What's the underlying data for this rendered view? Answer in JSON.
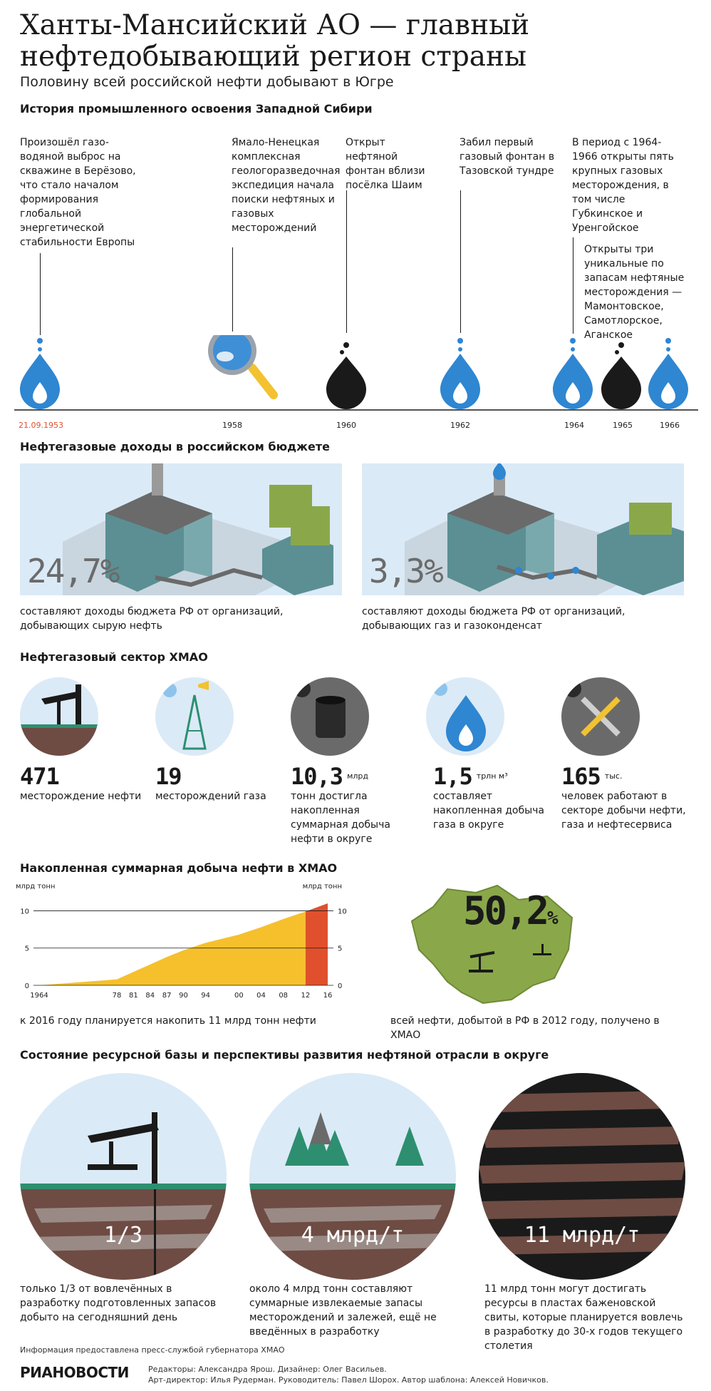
{
  "header": {
    "title_line1": "Ханты-Мансийский АО — главный",
    "title_line2": "нефтедобывающий регион страны",
    "subtitle": "Половину всей российской нефти добывают в Югре"
  },
  "history": {
    "heading": "История промышленного освоения Западной Сибири",
    "events": [
      {
        "year": "21.09.1953",
        "text": "Произошёл газо-водяной выброс на скважине в Берёзово, что стало началом формирования глобальной энергетической стабильности Европы"
      },
      {
        "year": "1958",
        "text": "Ямало-Ненецкая комплексная геологоразведочная экспедиция начала поиски нефтяных и газовых месторождений"
      },
      {
        "year": "1960",
        "text": "Открыт нефтяной фонтан вблизи посёлка Шаим"
      },
      {
        "year": "1962",
        "text": "Забил первый газовый фонтан в Тазовской тундре"
      },
      {
        "year": "1964",
        "text": "В период с 1964-1966 открыты пять крупных газовых месторождения, в том числе Губкинское и Уренгойское"
      },
      {
        "year": "1965",
        "text": "Открыты три уникальные по запасам нефтяные месторождения — Мамонтовское, Самотлорское, Аганское"
      },
      {
        "year": "1966",
        "text": ""
      }
    ]
  },
  "budget": {
    "heading": "Нефтегазовые доходы в российском бюджете",
    "left": {
      "value": "24,7%",
      "caption": "составляют доходы бюджета РФ от организаций, добывающих сырую нефть"
    },
    "right": {
      "value": "3,3%",
      "caption": "составляют доходы бюджета РФ от организаций, добывающих газ и газоконденсат"
    }
  },
  "sector": {
    "heading": "Нефтегазовый сектор ХМАО",
    "items": [
      {
        "value": "471",
        "unit": "",
        "caption": "месторождение нефти",
        "icon": "oil-pump-icon"
      },
      {
        "value": "19",
        "unit": "",
        "caption": "месторождений газа",
        "icon": "gas-rig-icon"
      },
      {
        "value": "10,3",
        "unit": "млрд",
        "caption": "тонн достигла накопленная суммарная добыча нефти в округе",
        "icon": "oil-barrel-icon"
      },
      {
        "value": "1,5",
        "unit": "трлн м³",
        "caption": "составляет накопленная добыча газа в округе",
        "icon": "gas-drop-icon"
      },
      {
        "value": "165",
        "unit": "тыс.",
        "caption": "человек работают в секторе добычи нефти, газа и нефтесервиса",
        "icon": "tools-icon"
      }
    ]
  },
  "chart_section": {
    "heading": "Накопленная суммарная добыча нефти в ХМАО",
    "caption": "к 2016 году планируется накопить 11 млрд тонн нефти"
  },
  "chart_data": {
    "type": "area",
    "xlabel": "",
    "ylabel_left": "млрд тонн",
    "ylabel_right": "млрд тонн",
    "x_tick_labels": [
      "1964",
      "78",
      "81",
      "84",
      "87",
      "90",
      "94",
      "00",
      "04",
      "08",
      "12",
      "16"
    ],
    "x": [
      1964,
      1978,
      1981,
      1984,
      1987,
      1990,
      1994,
      2000,
      2004,
      2008,
      2012,
      2016
    ],
    "series": [
      {
        "values": [
          0,
          0.8,
          1.8,
          2.8,
          3.8,
          4.7,
          5.7,
          6.8,
          7.8,
          8.9,
          9.9,
          11
        ]
      }
    ],
    "forecast_from": 2012,
    "ylim": [
      0,
      11
    ],
    "yticks": [
      0,
      5,
      10
    ],
    "grid": true,
    "colors": {
      "actual": "#f5c02c",
      "forecast": "#e0502c"
    }
  },
  "map": {
    "value": "50,2",
    "suffix": "%",
    "caption": "всей нефти, добытой в РФ в 2012 году, получено в ХМАО",
    "color": "#8aa84a"
  },
  "resources": {
    "heading": "Состояние ресурсной базы и перспективы развития нефтяной отрасли в округе",
    "items": [
      {
        "value": "1/3",
        "caption": "только 1/3 от вовлечённых в разработку подготовленных запасов добыто на сегодняшний день"
      },
      {
        "value": "4 млрд/т",
        "caption": "около 4 млрд тонн составляют суммарные извлекаемые запасы месторождений и залежей, ещё не введённых в разработку"
      },
      {
        "value": "11 млрд/т",
        "caption": "11 млрд тонн могут достигать ресурсы в пластах баженовской свиты, которые планируется вовлечь в разработку до 30-х годов текущего столетия"
      }
    ]
  },
  "footer": {
    "source": "Информация предоставлена пресс-службой губернатора ХМАО",
    "logo": "РИАНОВОСТИ",
    "credits_line1": "Редакторы: Александра Ярош. Дизайнер: Олег Васильев.",
    "credits_line2": "Арт-директор: Илья Рудерман. Руководитель: Павел Шорох. Автор шаблона: Алексей Новичков."
  },
  "colors": {
    "gas_blue": "#2f86d1",
    "oil_black": "#1a1a1a",
    "light_blue": "#dbeaf7",
    "accent_red": "#e0502c",
    "earth_brown": "#6e4c43"
  }
}
